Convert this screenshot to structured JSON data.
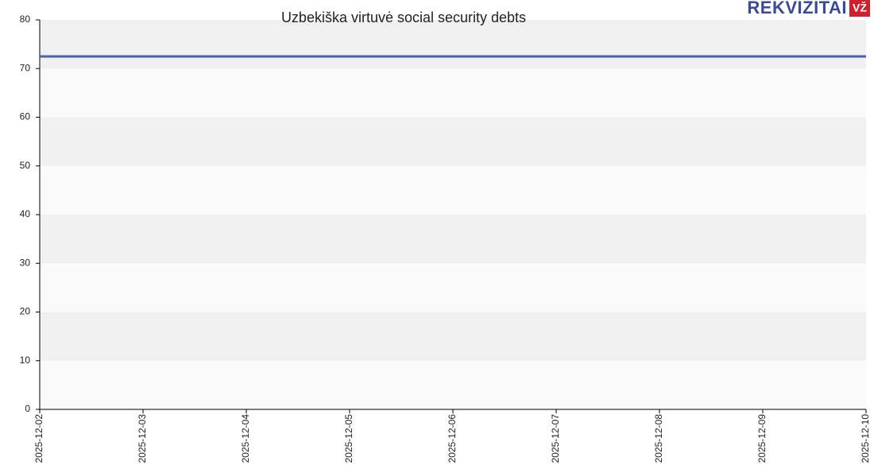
{
  "chart_data": {
    "type": "line",
    "title": "Uzbekiška virtuvė social security debts",
    "logo": {
      "text": "REKVIZITAI",
      "badge": "VŽ"
    },
    "x": [
      "2025-12-02",
      "2025-12-03",
      "2025-12-04",
      "2025-12-05",
      "2025-12-06",
      "2025-12-07",
      "2025-12-08",
      "2025-12-09",
      "2025-12-10"
    ],
    "series": [
      {
        "name": "Social security debts",
        "color": "#4a5fae",
        "values": [
          72.5,
          72.5,
          72.5,
          72.5,
          72.5,
          72.5,
          72.5,
          72.5,
          72.5
        ]
      }
    ],
    "ylim": [
      0,
      80
    ],
    "yticks": [
      0,
      10,
      20,
      30,
      40,
      50,
      60,
      70,
      80
    ],
    "grid": true
  }
}
